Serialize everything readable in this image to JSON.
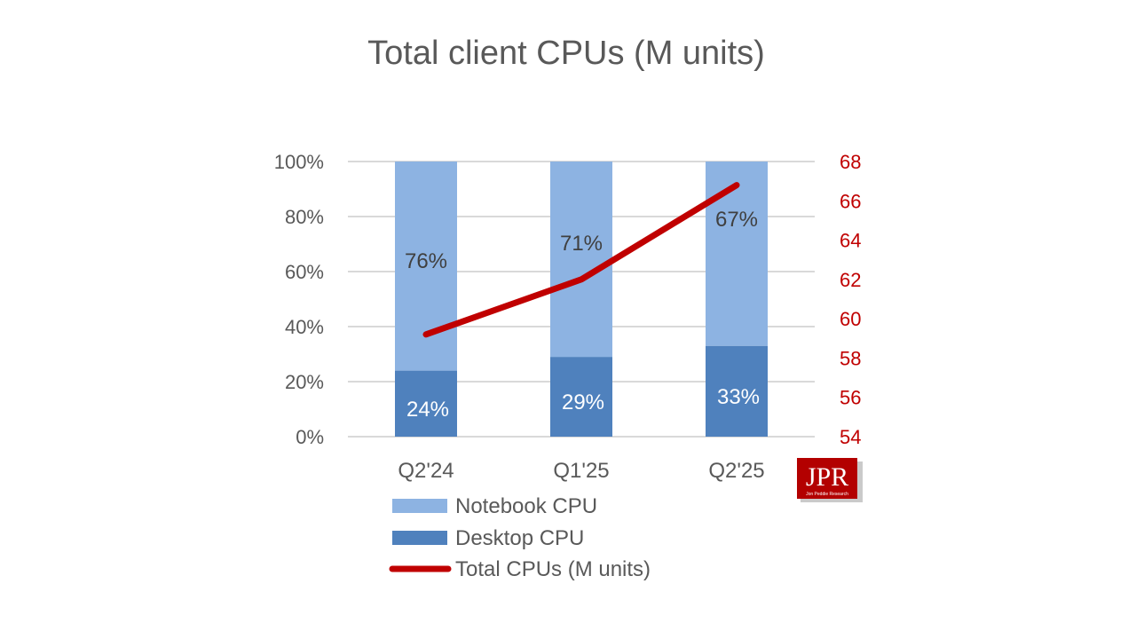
{
  "chart_data": {
    "type": "bar",
    "stacked": true,
    "title": "Total client CPUs (M units)",
    "categories": [
      "Q2'24",
      "Q1'25",
      "Q2'25"
    ],
    "series": [
      {
        "name": "Desktop CPU",
        "values": [
          24,
          29,
          33
        ],
        "labels": [
          "24%",
          "29%",
          "33%"
        ],
        "color": "#4f81bd"
      },
      {
        "name": "Notebook CPU",
        "values": [
          76,
          71,
          67
        ],
        "labels": [
          "76%",
          "71%",
          "67%"
        ],
        "color": "#8db3e2"
      }
    ],
    "line_series": {
      "name": "Total CPUs (M units)",
      "axis": "secondary",
      "values": [
        59.2,
        62.0,
        66.8
      ],
      "color": "#c00000"
    },
    "y_left": {
      "ylim": [
        0,
        100
      ],
      "ticks": [
        "0%",
        "20%",
        "40%",
        "60%",
        "80%",
        "100%"
      ]
    },
    "y_right": {
      "ylim": [
        54,
        68
      ],
      "ticks": [
        "54",
        "56",
        "58",
        "60",
        "62",
        "64",
        "66",
        "68"
      ]
    },
    "grid": true,
    "legend_position": "bottom",
    "legend_order": [
      "Notebook CPU",
      "Desktop CPU",
      "Total CPUs (M units)"
    ]
  },
  "logo": {
    "text": "JPR",
    "subtext": "Jon Peddie Research"
  }
}
